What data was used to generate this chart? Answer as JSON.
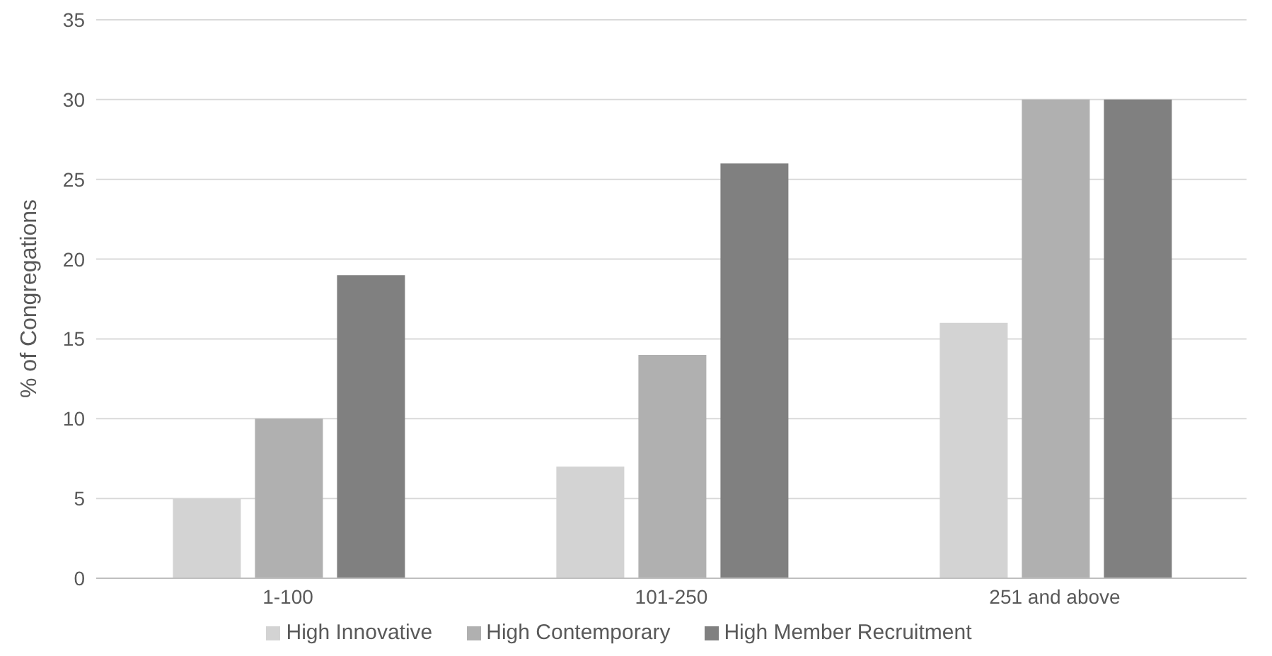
{
  "chart_data": {
    "type": "bar",
    "ylabel": "% of Congregations",
    "categories": [
      "1-100",
      "101-250",
      "251 and above"
    ],
    "series": [
      {
        "name": "High Innovative",
        "color": "#d3d3d3",
        "values": [
          5,
          7,
          16
        ]
      },
      {
        "name": "High Contemporary",
        "color": "#b0b0b0",
        "values": [
          10,
          14,
          30
        ]
      },
      {
        "name": "High Member Recruitment",
        "color": "#808080",
        "values": [
          19,
          26,
          30
        ]
      }
    ],
    "ylim": [
      0,
      35
    ],
    "yticks": [
      0,
      5,
      10,
      15,
      20,
      25,
      30,
      35
    ],
    "grid": "y",
    "legend": "bottom"
  }
}
